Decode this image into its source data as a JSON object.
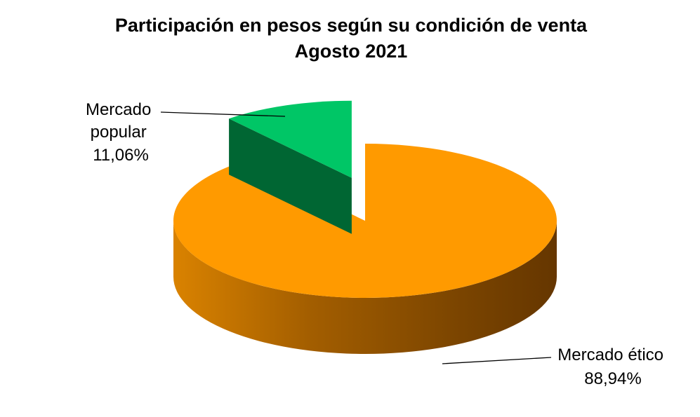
{
  "chart_data": {
    "type": "pie",
    "title": "Participación en pesos según su condición de venta",
    "subtitle": "Agosto 2021",
    "categories": [
      "Mercado popular",
      "Mercado ético"
    ],
    "values": [
      11.06,
      88.94
    ],
    "value_labels": [
      "11,06%",
      "88,94%"
    ],
    "label_lines": [
      [
        "Mercado",
        "popular",
        "11,06%"
      ],
      [
        "Mercado ético",
        "88,94%"
      ]
    ],
    "colors": [
      "#00c666",
      "#ff9900"
    ],
    "exploded": "Mercado popular",
    "style": "3d",
    "legend": "none"
  }
}
